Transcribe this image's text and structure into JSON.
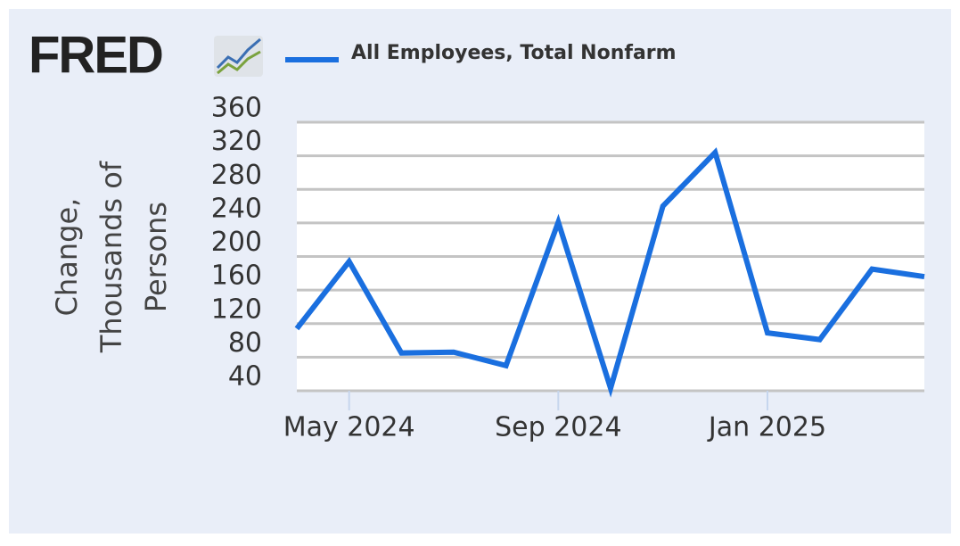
{
  "logo": "FRED",
  "chart_data": {
    "type": "line",
    "y_label": [
      "Change,",
      "Thousands of",
      "Persons"
    ],
    "x": [
      "2024-04",
      "2024-05",
      "2024-06",
      "2024-07",
      "2024-08",
      "2024-09",
      "2024-10",
      "2024-11",
      "2024-12",
      "2025-01",
      "2025-02",
      "2025-03",
      "2025-04"
    ],
    "series": [
      {
        "name": "All Employees, Total Nonfarm",
        "color": "#1a6fdf",
        "values": [
          114,
          194,
          85,
          86,
          70,
          241,
          43,
          260,
          324,
          109,
          101,
          185,
          176
        ]
      }
    ],
    "xticks": [
      {
        "value": "2024-05",
        "label": "May 2024"
      },
      {
        "value": "2024-09",
        "label": "Sep 2024"
      },
      {
        "value": "2025-01",
        "label": "Jan 2025"
      }
    ],
    "ylim": [
      40,
      360
    ],
    "yticks": [
      40,
      80,
      120,
      160,
      200,
      240,
      280,
      320,
      360
    ],
    "grid": true
  }
}
